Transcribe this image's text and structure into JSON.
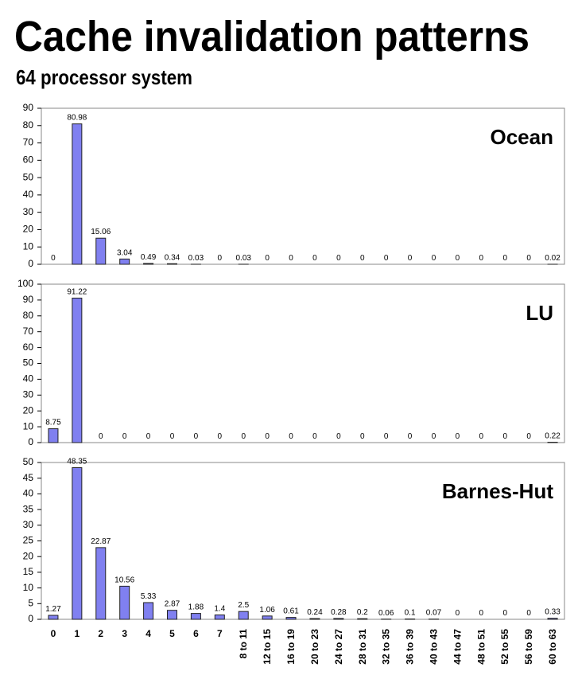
{
  "title": "Cache invalidation patterns",
  "subtitle": "64 processor system",
  "chart_data": [
    {
      "type": "bar",
      "title": "Ocean",
      "color": "#8080f0",
      "values": [
        0,
        80.98,
        15.06,
        3.04,
        0.49,
        0.34,
        0.03,
        0,
        0.03,
        0,
        0,
        0,
        0,
        0,
        0,
        0,
        0,
        0,
        0,
        0,
        0,
        0.02
      ],
      "ylim": [
        0,
        90
      ],
      "yticks": [
        0,
        10,
        20,
        30,
        40,
        50,
        60,
        70,
        80,
        90
      ]
    },
    {
      "type": "bar",
      "title": "LU",
      "color": "#8080f0",
      "values": [
        8.75,
        91.22,
        0,
        0,
        0,
        0,
        0,
        0,
        0,
        0,
        0,
        0,
        0,
        0,
        0,
        0,
        0,
        0,
        0,
        0,
        0,
        0.22
      ],
      "ylim": [
        0,
        100
      ],
      "yticks": [
        0,
        10,
        20,
        30,
        40,
        50,
        60,
        70,
        80,
        90,
        100
      ]
    },
    {
      "type": "bar",
      "title": "Barnes-Hut",
      "color": "#8080f0",
      "categories": [
        "0",
        "1",
        "2",
        "3",
        "4",
        "5",
        "6",
        "7",
        "8 to 11",
        "12 to 15",
        "16 to 19",
        "20 to 23",
        "24 to 27",
        "28 to 31",
        "32 to 35",
        "36 to 39",
        "40 to 43",
        "44 to 47",
        "48 to 51",
        "52 to 55",
        "56 to 59",
        "60 to 63"
      ],
      "values": [
        1.27,
        48.35,
        22.87,
        10.56,
        5.33,
        2.87,
        1.88,
        1.4,
        2.5,
        1.06,
        0.61,
        0.24,
        0.28,
        0.2,
        0.06,
        0.1,
        0.07,
        0,
        0,
        0,
        0,
        0.33
      ],
      "ylim": [
        0,
        50
      ],
      "yticks": [
        0,
        5,
        10,
        15,
        20,
        25,
        30,
        35,
        40,
        45,
        50
      ]
    }
  ]
}
